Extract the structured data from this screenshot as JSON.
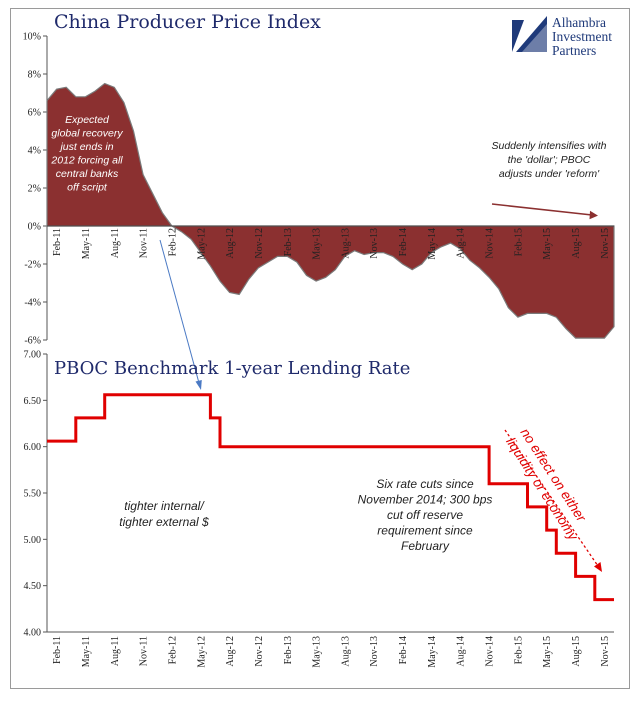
{
  "brand": {
    "name_lines": [
      "Alhambra",
      "Investment",
      "Partners"
    ],
    "color": "#1f3a7a"
  },
  "chart_data": [
    {
      "type": "area",
      "title": "China Producer Price Index",
      "ylim": [
        -6,
        10
      ],
      "y_ticks": [
        "10%",
        "8%",
        "6%",
        "4%",
        "2%",
        "0%",
        "-2%",
        "-4%",
        "-6%"
      ],
      "x_tick_labels": [
        "Feb-11",
        "May-11",
        "Aug-11",
        "Nov-11",
        "Feb-12",
        "May-12",
        "Aug-12",
        "Nov-12",
        "Feb-13",
        "May-13",
        "Aug-13",
        "Nov-13",
        "Feb-14",
        "May-14",
        "Aug-14",
        "Nov-14",
        "Feb-15",
        "May-15",
        "Aug-15",
        "Nov-15"
      ],
      "fill_color": "#8b3030",
      "x": [
        "2011-01",
        "2011-02",
        "2011-03",
        "2011-04",
        "2011-05",
        "2011-06",
        "2011-07",
        "2011-08",
        "2011-09",
        "2011-10",
        "2011-11",
        "2011-12",
        "2012-01",
        "2012-02",
        "2012-03",
        "2012-04",
        "2012-05",
        "2012-06",
        "2012-07",
        "2012-08",
        "2012-09",
        "2012-10",
        "2012-11",
        "2012-12",
        "2013-01",
        "2013-02",
        "2013-03",
        "2013-04",
        "2013-05",
        "2013-06",
        "2013-07",
        "2013-08",
        "2013-09",
        "2013-10",
        "2013-11",
        "2013-12",
        "2014-01",
        "2014-02",
        "2014-03",
        "2014-04",
        "2014-05",
        "2014-06",
        "2014-07",
        "2014-08",
        "2014-09",
        "2014-10",
        "2014-11",
        "2014-12",
        "2015-01",
        "2015-02",
        "2015-03",
        "2015-04",
        "2015-05",
        "2015-06",
        "2015-07",
        "2015-08",
        "2015-09",
        "2015-10",
        "2015-11",
        "2015-12"
      ],
      "values": [
        6.6,
        7.2,
        7.3,
        6.8,
        6.8,
        7.1,
        7.5,
        7.3,
        6.5,
        5.0,
        2.7,
        1.7,
        0.7,
        0.0,
        -0.3,
        -0.7,
        -1.4,
        -2.1,
        -2.9,
        -3.5,
        -3.6,
        -2.8,
        -2.2,
        -1.9,
        -1.6,
        -1.6,
        -1.9,
        -2.6,
        -2.9,
        -2.7,
        -2.3,
        -1.6,
        -1.3,
        -1.5,
        -1.4,
        -1.4,
        -1.6,
        -2.0,
        -2.3,
        -2.0,
        -1.4,
        -1.1,
        -0.9,
        -1.2,
        -1.8,
        -2.2,
        -2.7,
        -3.3,
        -4.3,
        -4.8,
        -4.6,
        -4.6,
        -4.6,
        -4.8,
        -5.4,
        -5.9,
        -5.9,
        -5.9,
        -5.9,
        -5.3
      ],
      "annotations": [
        {
          "lines": [
            "Expected",
            "global recovery",
            "just ends in",
            "2012 forcing all",
            "central banks",
            "off script"
          ]
        },
        {
          "lines": [
            "Suddenly intensifies with",
            "the 'dollar'; PBOC",
            "adjusts under 'reform'"
          ]
        }
      ]
    },
    {
      "type": "line",
      "title": "PBOC Benchmark 1-year Lending Rate",
      "ylim": [
        4.0,
        7.0
      ],
      "y_ticks": [
        "7.00",
        "6.50",
        "6.00",
        "5.50",
        "5.00",
        "4.50",
        "4.00"
      ],
      "x_tick_labels": [
        "Feb-11",
        "May-11",
        "Aug-11",
        "Nov-11",
        "Feb-12",
        "May-12",
        "Aug-12",
        "Nov-12",
        "Feb-13",
        "May-13",
        "Aug-13",
        "Nov-13",
        "Feb-14",
        "May-14",
        "Aug-14",
        "Nov-14",
        "Feb-15",
        "May-15",
        "Aug-15",
        "Nov-15"
      ],
      "line_color": "#e00000",
      "steps": [
        {
          "date": "2011-01",
          "rate": 6.06
        },
        {
          "date": "2011-04",
          "rate": 6.31
        },
        {
          "date": "2011-07",
          "rate": 6.56
        },
        {
          "date": "2012-06",
          "rate": 6.31
        },
        {
          "date": "2012-07",
          "rate": 6.0
        },
        {
          "date": "2014-11",
          "rate": 5.6
        },
        {
          "date": "2015-03",
          "rate": 5.35
        },
        {
          "date": "2015-05",
          "rate": 5.1
        },
        {
          "date": "2015-06",
          "rate": 4.85
        },
        {
          "date": "2015-08",
          "rate": 4.6
        },
        {
          "date": "2015-10",
          "rate": 4.35
        },
        {
          "date": "2015-12",
          "rate": 4.35
        }
      ],
      "annotations": [
        {
          "lines": [
            "tighter internal/",
            "tighter external $"
          ]
        },
        {
          "lines": [
            "Six rate cuts since",
            "November 2014; 300 bps",
            "cut off reserve",
            "requirement since",
            "February"
          ]
        },
        {
          "lines": [
            "no effect on either",
            "liquidity or economy"
          ],
          "color": "#e00000"
        }
      ]
    }
  ]
}
